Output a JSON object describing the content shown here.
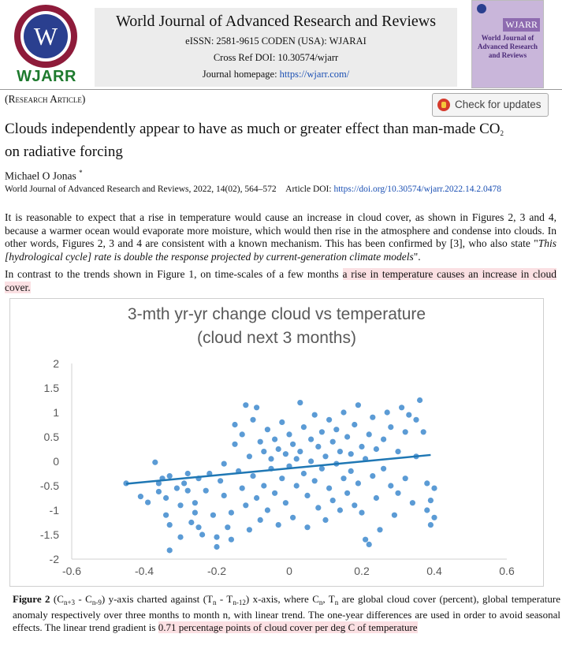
{
  "header": {
    "logo_letter": "W",
    "logo_text": "WJARR",
    "journal_title": "World Journal of Advanced Research and Reviews",
    "issn_line": "eISSN: 2581-9615 CODEN (USA): WJARAI",
    "doi_line": "Cross Ref DOI: 10.30574/wjarr",
    "homepage_label": "Journal homepage: ",
    "homepage_url": "https://wjarr.com/",
    "cover_brand": "WJARR",
    "cover_title": "World Journal of Advanced Research and Reviews"
  },
  "article": {
    "type": "Research Article",
    "check_updates": "Check for updates",
    "title_prefix": "Clouds independently appear to have as much or greater effect than man-made CO",
    "title_sub": "2",
    "title_suffix": "on radiative forcing",
    "author": "Michael O Jonas",
    "author_mark": "*",
    "citation": "World Journal of Advanced Research and Reviews, 2022, 14(02), 564–572",
    "doi_label": "Article DOI: ",
    "doi_url": "https://doi.org/10.30574/wjarr.2022.14.2.0478"
  },
  "body": {
    "p1_a": "It is reasonable to expect that a rise in temperature would cause an increase in cloud cover, as shown in Figures 2, 3 and 4, because a warmer ocean would evaporate more moisture, which would then rise in the atmosphere and condense into clouds. In other words, Figures 2, 3 and 4 are consistent with a known mechanism. This has been confirmed by [3], who also state \"",
    "p1_quote": "This [hydrological cycle] rate is double the response projected by current-generation climate models",
    "p1_b": "\".",
    "p2_a": "In contrast to the trends shown in Figure 1, on time-scales of a few months ",
    "p2_hl": "a rise in temperature causes an increase in cloud cover."
  },
  "caption": {
    "label": "Figure 2",
    "t1": " (C",
    "s1": "n+3",
    "t2": " - C",
    "s2": "n-9",
    "t3": ") y-axis charted against (T",
    "s3": "n",
    "t4": " - T",
    "s4": "n-12",
    "t5": ") x-axis, where C",
    "s5": "n",
    "t6": ", T",
    "s6": "n",
    "t7": " are global cloud cover (percent), global temperature anomaly respectively over three months to month n, with linear trend. The one-year differences are used in order to avoid seasonal effects. The linear trend gradient is ",
    "hl": "0.71 percentage points of cloud cover per deg C of temperature"
  },
  "chart_data": {
    "type": "scatter",
    "title_line1": "3-mth yr-yr change cloud vs temperature",
    "title_line2": "(cloud next 3 months)",
    "xlim": [
      -0.6,
      0.6
    ],
    "ylim": [
      -2,
      2
    ],
    "xticks": [
      "-0.6",
      "-0.4",
      "-0.2",
      "0",
      "0.2",
      "0.4",
      "0.6"
    ],
    "yticks": [
      "2",
      "1.5",
      "1",
      "0.5",
      "0",
      "-0.5",
      "-1",
      "-1.5",
      "-2"
    ],
    "grid": false,
    "point_color": "#5b9bd5",
    "line_color": "#1f77b4",
    "trend": {
      "x": [
        -0.45,
        0.39
      ],
      "y": [
        -0.46,
        0.13
      ]
    },
    "points": [
      [
        -0.45,
        -0.45
      ],
      [
        -0.41,
        -0.72
      ],
      [
        -0.39,
        -0.84
      ],
      [
        -0.37,
        -0.02
      ],
      [
        -0.36,
        -0.45
      ],
      [
        -0.36,
        -0.62
      ],
      [
        -0.35,
        -0.35
      ],
      [
        -0.34,
        -1.1
      ],
      [
        -0.34,
        -0.75
      ],
      [
        -0.33,
        -0.3
      ],
      [
        -0.33,
        -1.3
      ],
      [
        -0.33,
        -1.82
      ],
      [
        -0.31,
        -0.55
      ],
      [
        -0.3,
        -1.55
      ],
      [
        -0.3,
        -0.9
      ],
      [
        -0.29,
        -0.45
      ],
      [
        -0.28,
        -0.25
      ],
      [
        -0.28,
        -0.6
      ],
      [
        -0.27,
        -1.25
      ],
      [
        -0.26,
        -1.05
      ],
      [
        -0.26,
        -0.85
      ],
      [
        -0.25,
        -0.35
      ],
      [
        -0.25,
        -1.35
      ],
      [
        -0.24,
        -1.5
      ],
      [
        -0.23,
        -0.6
      ],
      [
        -0.22,
        -0.25
      ],
      [
        -0.21,
        -1.1
      ],
      [
        -0.2,
        -1.75
      ],
      [
        -0.2,
        -1.55
      ],
      [
        -0.19,
        -0.4
      ],
      [
        -0.18,
        -0.05
      ],
      [
        -0.18,
        -0.7
      ],
      [
        -0.17,
        -1.35
      ],
      [
        -0.16,
        -1.6
      ],
      [
        -0.16,
        -1.05
      ],
      [
        -0.15,
        0.35
      ],
      [
        -0.15,
        0.75
      ],
      [
        -0.14,
        -0.2
      ],
      [
        -0.13,
        0.55
      ],
      [
        -0.13,
        -0.55
      ],
      [
        -0.12,
        1.15
      ],
      [
        -0.12,
        -0.9
      ],
      [
        -0.11,
        0.1
      ],
      [
        -0.11,
        -1.4
      ],
      [
        -0.1,
        0.85
      ],
      [
        -0.1,
        -0.3
      ],
      [
        -0.09,
        1.1
      ],
      [
        -0.09,
        -0.75
      ],
      [
        -0.08,
        0.4
      ],
      [
        -0.08,
        -1.2
      ],
      [
        -0.07,
        0.2
      ],
      [
        -0.07,
        -0.5
      ],
      [
        -0.06,
        0.65
      ],
      [
        -0.06,
        -1.0
      ],
      [
        -0.05,
        -0.15
      ],
      [
        -0.05,
        0.05
      ],
      [
        -0.04,
        0.45
      ],
      [
        -0.04,
        -0.65
      ],
      [
        -0.03,
        -1.3
      ],
      [
        -0.03,
        0.25
      ],
      [
        -0.02,
        0.8
      ],
      [
        -0.02,
        -0.35
      ],
      [
        -0.01,
        0.15
      ],
      [
        -0.01,
        -0.85
      ],
      [
        0.0,
        0.55
      ],
      [
        0.0,
        -0.1
      ],
      [
        0.01,
        -1.15
      ],
      [
        0.01,
        0.35
      ],
      [
        0.02,
        0.05
      ],
      [
        0.02,
        -0.5
      ],
      [
        0.03,
        1.2
      ],
      [
        0.03,
        0.2
      ],
      [
        0.04,
        -0.25
      ],
      [
        0.04,
        0.7
      ],
      [
        0.05,
        -1.35
      ],
      [
        0.05,
        -0.7
      ],
      [
        0.06,
        0.45
      ],
      [
        0.06,
        0.0
      ],
      [
        0.07,
        0.95
      ],
      [
        0.07,
        -0.4
      ],
      [
        0.08,
        -0.95
      ],
      [
        0.08,
        0.3
      ],
      [
        0.09,
        0.6
      ],
      [
        0.09,
        -0.15
      ],
      [
        0.1,
        -1.2
      ],
      [
        0.1,
        0.1
      ],
      [
        0.11,
        0.85
      ],
      [
        0.11,
        -0.55
      ],
      [
        0.12,
        0.4
      ],
      [
        0.12,
        -0.8
      ],
      [
        0.13,
        -0.05
      ],
      [
        0.13,
        0.65
      ],
      [
        0.14,
        -1.0
      ],
      [
        0.14,
        0.2
      ],
      [
        0.15,
        -0.35
      ],
      [
        0.15,
        1.0
      ],
      [
        0.16,
        0.5
      ],
      [
        0.16,
        -0.65
      ],
      [
        0.17,
        0.15
      ],
      [
        0.17,
        -0.2
      ],
      [
        0.18,
        0.75
      ],
      [
        0.18,
        -0.9
      ],
      [
        0.19,
        1.15
      ],
      [
        0.19,
        -0.45
      ],
      [
        0.2,
        0.3
      ],
      [
        0.2,
        -1.05
      ],
      [
        0.21,
        -1.6
      ],
      [
        0.21,
        0.05
      ],
      [
        0.22,
        0.55
      ],
      [
        0.22,
        -1.7
      ],
      [
        0.23,
        -0.3
      ],
      [
        0.23,
        0.9
      ],
      [
        0.24,
        -0.75
      ],
      [
        0.24,
        0.25
      ],
      [
        0.25,
        -1.4
      ],
      [
        0.26,
        0.45
      ],
      [
        0.26,
        -0.15
      ],
      [
        0.27,
        1.0
      ],
      [
        0.28,
        -0.5
      ],
      [
        0.28,
        0.7
      ],
      [
        0.29,
        -1.1
      ],
      [
        0.3,
        0.2
      ],
      [
        0.3,
        -0.65
      ],
      [
        0.31,
        1.1
      ],
      [
        0.32,
        0.6
      ],
      [
        0.32,
        -0.35
      ],
      [
        0.33,
        0.95
      ],
      [
        0.34,
        -0.85
      ],
      [
        0.35,
        0.85
      ],
      [
        0.35,
        0.1
      ],
      [
        0.36,
        1.25
      ],
      [
        0.37,
        0.6
      ],
      [
        0.38,
        -0.45
      ],
      [
        0.38,
        -1.0
      ],
      [
        0.39,
        -0.8
      ],
      [
        0.39,
        -1.3
      ],
      [
        0.4,
        -0.55
      ],
      [
        0.4,
        -1.15
      ]
    ]
  }
}
